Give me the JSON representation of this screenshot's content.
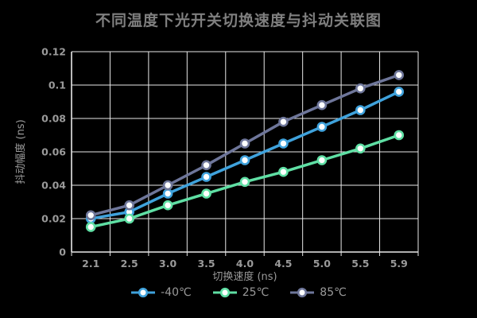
{
  "title": "不同温度下光开关切换速度与抖动关联图",
  "colors": {
    "background": "#000000",
    "title": "#7f7f7f",
    "axis_label": "#9a9a9a",
    "grid": "#e8e8e8",
    "marker_fill": "#ffffff",
    "series_minus40": "#3fa2dc",
    "series_25": "#5fdfa4",
    "series_85": "#6e769a"
  },
  "chart_data": {
    "type": "line",
    "title": "不同温度下光开关切换速度与抖动关联图",
    "xlabel": "切换速度 (ns)",
    "ylabel": "抖动幅度 (ns)",
    "categories": [
      "2.1",
      "2.5",
      "3.0",
      "3.5",
      "4.0",
      "4.5",
      "5.0",
      "5.5",
      "5.9"
    ],
    "series": [
      {
        "name": "-40℃",
        "color": "#3fa2dc",
        "values": [
          0.02,
          0.024,
          0.035,
          0.045,
          0.055,
          0.065,
          0.075,
          0.085,
          0.096
        ]
      },
      {
        "name": "25℃",
        "color": "#5fdfa4",
        "values": [
          0.015,
          0.02,
          0.028,
          0.035,
          0.042,
          0.048,
          0.055,
          0.062,
          0.07
        ]
      },
      {
        "name": "85℃",
        "color": "#6e769a",
        "values": [
          0.022,
          0.028,
          0.04,
          0.052,
          0.065,
          0.078,
          0.088,
          0.098,
          0.106
        ]
      }
    ],
    "ylim": [
      0,
      0.12
    ],
    "yticks": [
      "0",
      "0.02",
      "0.04",
      "0.06",
      "0.08",
      "0.1",
      "0.12"
    ],
    "grid": true,
    "legend_position": "bottom"
  }
}
